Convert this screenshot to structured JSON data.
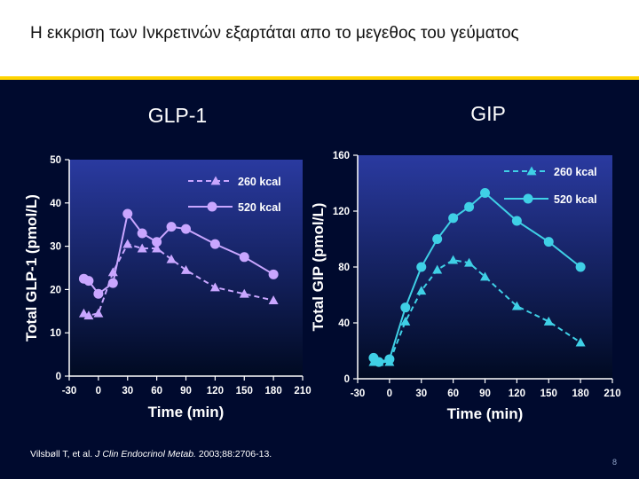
{
  "slide": {
    "title": "Η εκκριση των Ινκρετινών εξαρτάται  απο το μεγεθος του γεύματος",
    "citation": {
      "authors": "Vilsbøll T, et al. ",
      "journal": "J Clin Endocrinol Metab.",
      "details": " 2003;88:2706-13."
    },
    "page_number": "8"
  },
  "colors": {
    "background": "#000a2e",
    "plot_top": "#2a3aa0",
    "plot_bottom": "#000a22",
    "glp1_series": "#c9a6ff",
    "gip_series": "#3fd0e6",
    "accent_rule": "#ffd400",
    "text": "#ffffff"
  },
  "chart_data": [
    {
      "type": "line",
      "title": "GLP-1",
      "xlabel": "Time (min)",
      "ylabel": "Total GLP-1 (pmol/L)",
      "xlim": [
        -30,
        210
      ],
      "ylim": [
        0,
        50
      ],
      "xticks": [
        "-30",
        "0",
        "30",
        "60",
        "90",
        "120",
        "150",
        "180",
        "210"
      ],
      "yticks": [
        "0",
        "10",
        "20",
        "30",
        "40",
        "50"
      ],
      "grid": false,
      "legend_position": "top-right",
      "series": [
        {
          "name": "260 kcal",
          "marker": "triangle",
          "line_style": "dashed",
          "x": [
            -15,
            -10,
            0,
            15,
            30,
            45,
            60,
            75,
            90,
            120,
            150,
            180
          ],
          "y": [
            14.5,
            14,
            14.5,
            24,
            30.5,
            29.5,
            29.5,
            27,
            24.5,
            20.5,
            19,
            17.5
          ]
        },
        {
          "name": "520 kcal",
          "marker": "circle",
          "line_style": "solid",
          "x": [
            -15,
            -10,
            0,
            15,
            30,
            45,
            60,
            75,
            90,
            120,
            150,
            180
          ],
          "y": [
            22.5,
            22,
            19,
            21.5,
            37.5,
            33,
            31,
            34.5,
            34,
            30.5,
            27.5,
            23.5
          ]
        }
      ]
    },
    {
      "type": "line",
      "title": "GIP",
      "xlabel": "Time (min)",
      "ylabel": "Total GIP (pmol/L)",
      "xlim": [
        -30,
        210
      ],
      "ylim": [
        0,
        160
      ],
      "xticks": [
        "-30",
        "0",
        "30",
        "60",
        "90",
        "120",
        "150",
        "180",
        "210"
      ],
      "yticks": [
        "0",
        "40",
        "80",
        "120",
        "160"
      ],
      "grid": false,
      "legend_position": "top-right",
      "series": [
        {
          "name": "260 kcal",
          "marker": "triangle",
          "line_style": "dashed",
          "x": [
            -15,
            -10,
            0,
            15,
            30,
            45,
            60,
            75,
            90,
            120,
            150,
            180
          ],
          "y": [
            12,
            12,
            12,
            41,
            63,
            78,
            85,
            83,
            73,
            52,
            41,
            26
          ]
        },
        {
          "name": "520 kcal",
          "marker": "circle",
          "line_style": "solid",
          "x": [
            -15,
            -10,
            0,
            15,
            30,
            45,
            60,
            75,
            90,
            120,
            150,
            180
          ],
          "y": [
            15,
            12,
            14,
            51,
            80,
            100,
            115,
            123,
            133,
            113,
            98,
            80
          ]
        }
      ]
    }
  ]
}
